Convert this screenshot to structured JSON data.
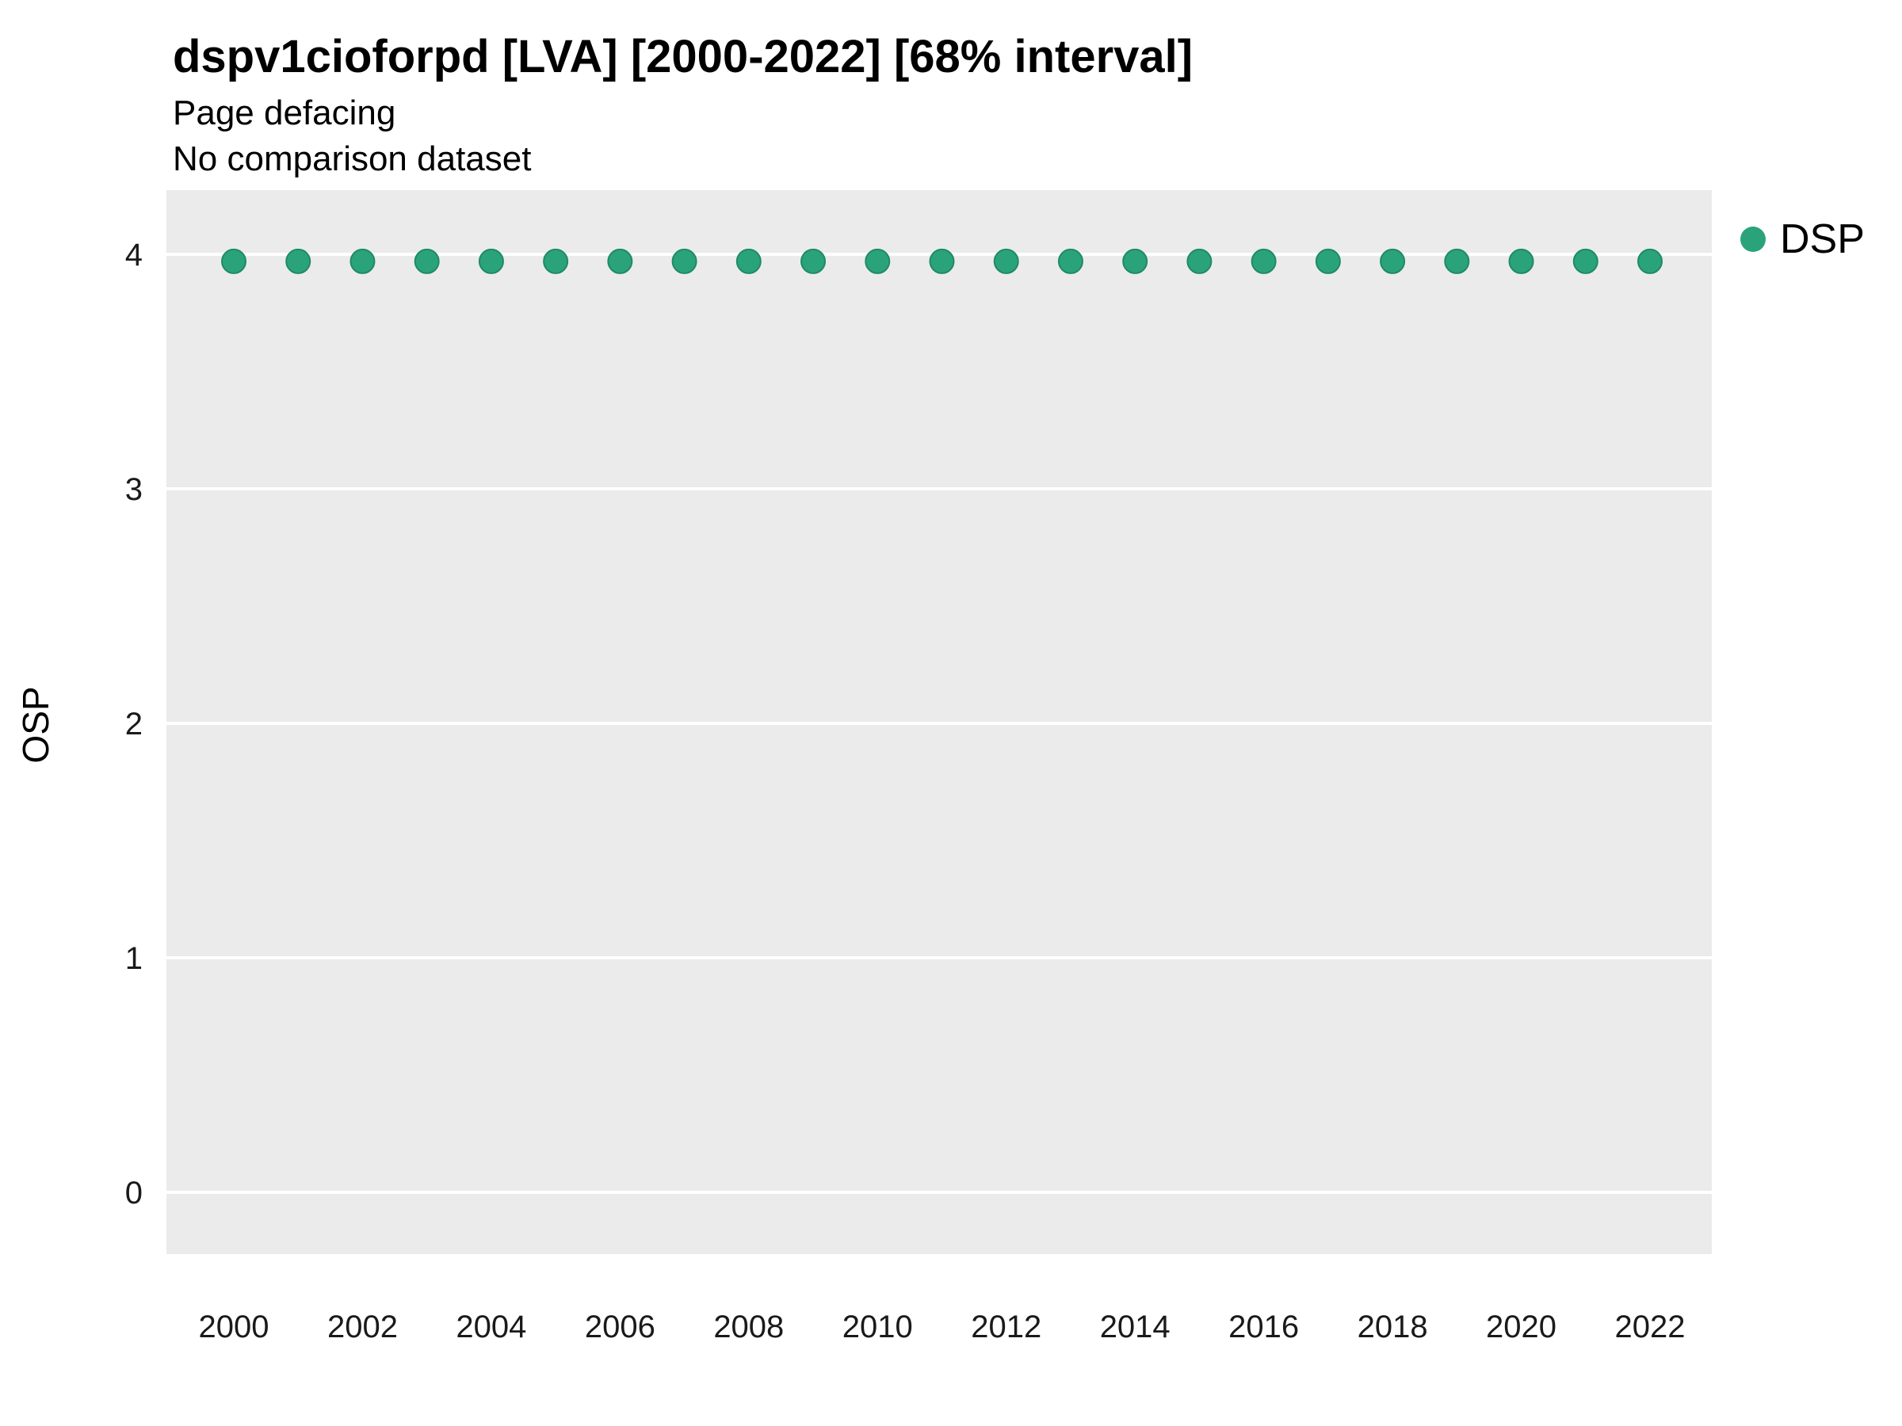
{
  "chart_data": {
    "type": "scatter",
    "title": "dspv1cioforpd [LVA] [2000-2022] [68% interval]",
    "subtitle1": "Page defacing",
    "subtitle2": "No comparison dataset",
    "xlabel": "",
    "ylabel": "OSP",
    "legend_position": "right",
    "panel_background": "#EBEBEB",
    "grid_color": "#FFFFFF",
    "xlim": [
      1999,
      2023
    ],
    "ylim": [
      -0.26,
      4.27
    ],
    "x_ticks": [
      2000,
      2002,
      2004,
      2006,
      2008,
      2010,
      2012,
      2014,
      2016,
      2018,
      2020,
      2022
    ],
    "y_ticks": [
      0,
      1,
      2,
      3,
      4
    ],
    "series": [
      {
        "name": "DSP",
        "color": "#2AA37B",
        "x": [
          2000,
          2001,
          2002,
          2003,
          2004,
          2005,
          2006,
          2007,
          2008,
          2009,
          2010,
          2011,
          2012,
          2013,
          2014,
          2015,
          2016,
          2017,
          2018,
          2019,
          2020,
          2021,
          2022
        ],
        "y": [
          3.97,
          3.97,
          3.97,
          3.97,
          3.97,
          3.97,
          3.97,
          3.97,
          3.97,
          3.97,
          3.97,
          3.97,
          3.97,
          3.97,
          3.97,
          3.97,
          3.97,
          3.97,
          3.97,
          3.97,
          3.97,
          3.97,
          3.97
        ]
      }
    ]
  }
}
